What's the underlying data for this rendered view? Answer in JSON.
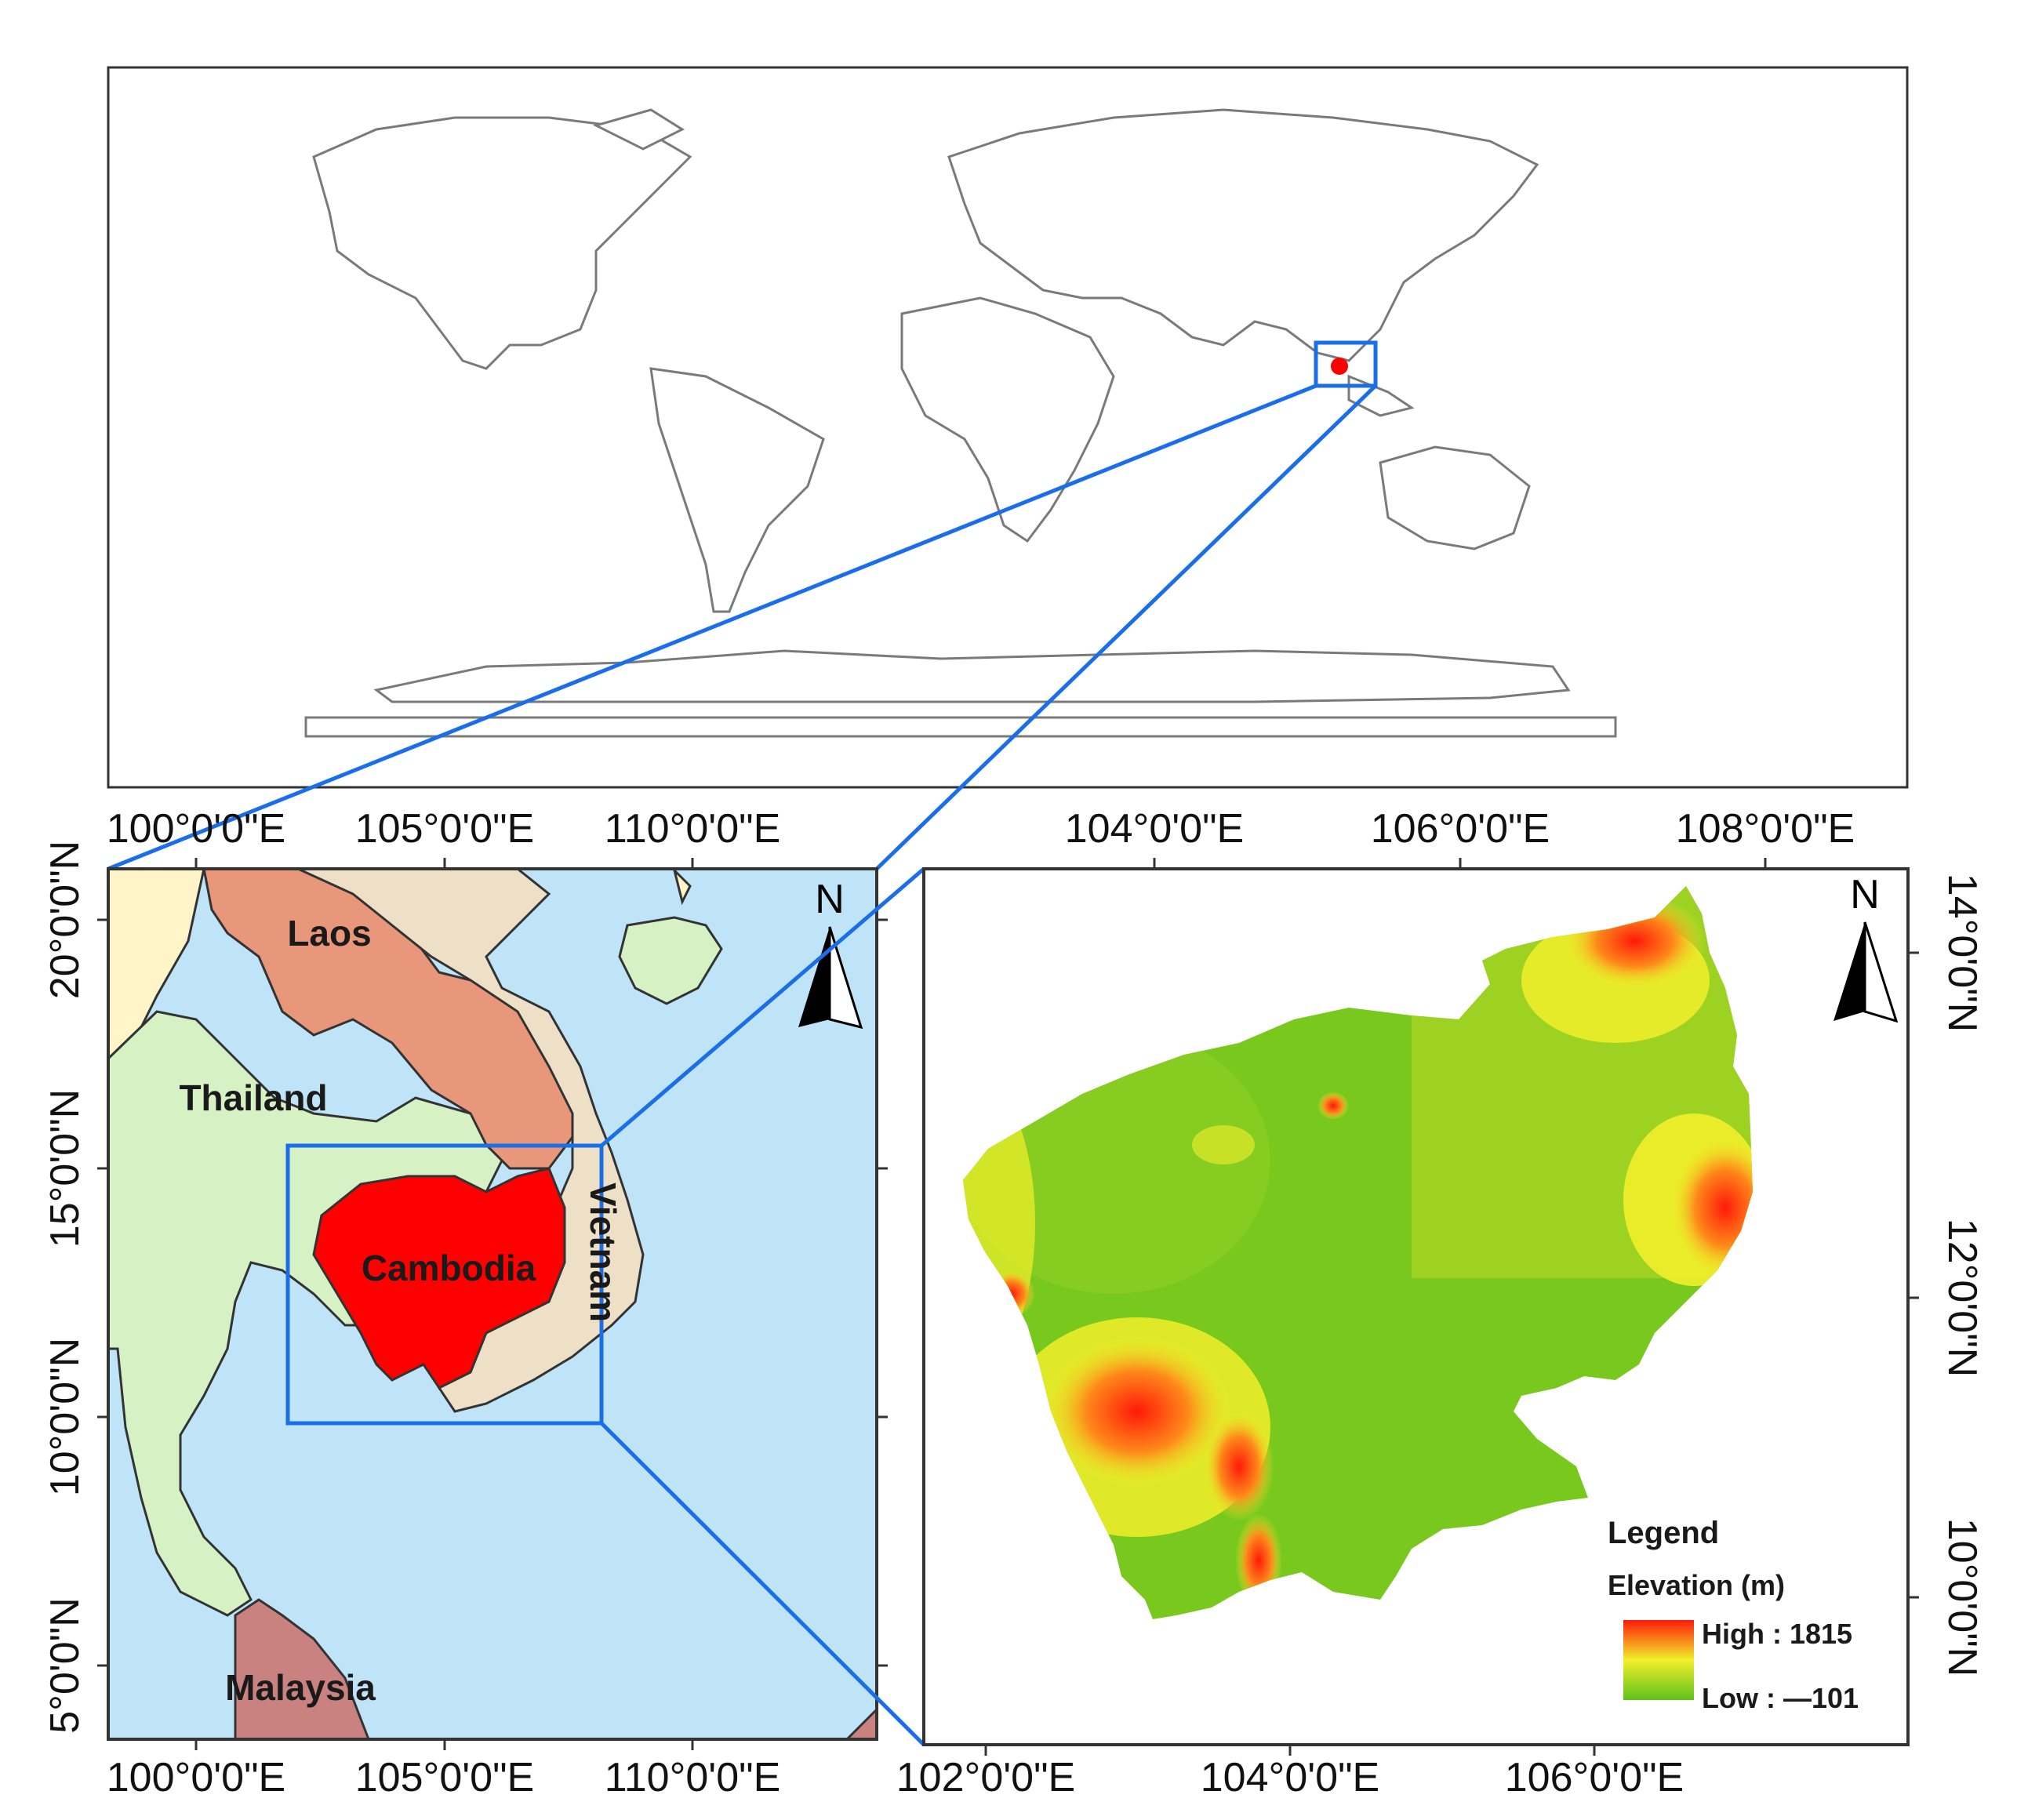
{
  "world_map": {
    "highlight_color": "#ff0000",
    "frame_color": "#1a6fe8"
  },
  "region_map": {
    "top_ticks": [
      "100°0'0\"E",
      "105°0'0\"E",
      "110°0'0\"E"
    ],
    "bottom_ticks": [
      "100°0'0\"E",
      "105°0'0\"E",
      "110°0'0\"E"
    ],
    "left_ticks": [
      "20°0'0\"N",
      "15°0'0\"N",
      "10°0'0\"N",
      "5°0'0\"N"
    ],
    "countries": {
      "laos": "Laos",
      "thailand": "Thailand",
      "cambodia": "Cambodia",
      "vietnam": "Vietnam",
      "malaysia": "Malaysia"
    },
    "north_label": "N",
    "colors": {
      "sea": "#bfe3f7",
      "thailand": "#d6f2c4",
      "laos": "#e9977a",
      "cambodia": "#ff0000",
      "vietnam": "#ede0c7",
      "malaysia": "#c98280",
      "myanmar": "#fff5c8"
    }
  },
  "elevation_map": {
    "top_ticks": [
      "104°0'0\"E",
      "106°0'0\"E",
      "108°0'0\"E"
    ],
    "bottom_ticks": [
      "102°0'0\"E",
      "104°0'0\"E",
      "106°0'0\"E"
    ],
    "right_ticks": [
      "14°0'0\"N",
      "12°0'0\"N",
      "10°0'0\"N"
    ],
    "north_label": "N",
    "legend": {
      "title": "Legend",
      "subtitle": "Elevation (m)",
      "high_label": "High : 1815",
      "low_label": "Low : —101"
    },
    "colors": {
      "low": "#5fc21c",
      "mid": "#f2ef2a",
      "high": "#ff1a0a"
    }
  }
}
